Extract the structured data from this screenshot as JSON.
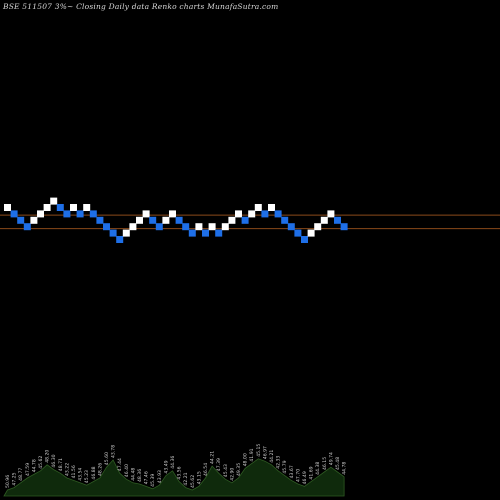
{
  "header": {
    "title": "BSE 511507 3%~  Closing Daily data  Renko  charts MunafaSutra.com"
  },
  "colors": {
    "background": "#000000",
    "brick_up": "#ffffff",
    "brick_down": "#1e6fe8",
    "reference_line": "#8a4a1a",
    "volume_fill": "#0f2a0c",
    "volume_stroke": "#2e5a22",
    "label_text": "#d0d0d0"
  },
  "chart_data": {
    "type": "renko",
    "brick_direction": [
      "up",
      "down",
      "down",
      "down",
      "up",
      "up",
      "up",
      "up",
      "down",
      "down",
      "up",
      "down",
      "up",
      "down",
      "down",
      "down",
      "down",
      "down",
      "up",
      "up",
      "up",
      "up",
      "down",
      "down",
      "up",
      "up",
      "down",
      "down",
      "down",
      "up",
      "down",
      "up",
      "down",
      "up",
      "up",
      "up",
      "down",
      "up",
      "up",
      "down",
      "up",
      "down",
      "down",
      "down",
      "down",
      "down",
      "up",
      "up",
      "up",
      "up",
      "down",
      "down"
    ],
    "brick_level": [
      0,
      -1,
      -2,
      -3,
      -2,
      -1,
      0,
      1,
      0,
      -1,
      0,
      -1,
      0,
      -1,
      -2,
      -3,
      -4,
      -5,
      -4,
      -3,
      -2,
      -1,
      -2,
      -3,
      -2,
      -1,
      -2,
      -3,
      -4,
      -3,
      -4,
      -3,
      -4,
      -3,
      -2,
      -1,
      -2,
      -1,
      0,
      -1,
      0,
      -1,
      -2,
      -3,
      -4,
      -5,
      -4,
      -3,
      -2,
      -1,
      -2,
      -3
    ],
    "reference_lines": [
      {
        "level": -1.2
      },
      {
        "level": -3.3
      }
    ],
    "price_labels": [
      "50.96",
      "47.25",
      "48.77",
      "47.59",
      "44.78",
      "45.62",
      "48.20",
      "46.30",
      "48.71",
      "43.22",
      "41.56",
      "43.54",
      "45.23",
      "46.88",
      "48.26",
      "45.60",
      "43.78",
      "47.44",
      "46.40",
      "44.48",
      "48.36",
      "47.46",
      "45.39",
      "43.93",
      "43.49",
      "44.36",
      "43.56",
      "42.21",
      "45.62",
      "43.15",
      "46.54",
      "44.21",
      "47.39",
      "45.43",
      "42.90",
      "49.35",
      "48.00",
      "41.91",
      "45.15",
      "46.97",
      "44.21",
      "42.33",
      "45.79",
      "43.67",
      "47.70",
      "46.49",
      "41.69",
      "44.38",
      "46.15",
      "49.74",
      "45.48",
      "44.78"
    ],
    "volume": [
      0.1,
      0.14,
      0.22,
      0.3,
      0.36,
      0.42,
      0.52,
      0.44,
      0.38,
      0.3,
      0.26,
      0.22,
      0.18,
      0.24,
      0.3,
      0.48,
      0.6,
      0.38,
      0.28,
      0.22,
      0.2,
      0.16,
      0.12,
      0.18,
      0.34,
      0.42,
      0.24,
      0.14,
      0.1,
      0.16,
      0.3,
      0.5,
      0.38,
      0.28,
      0.22,
      0.3,
      0.46,
      0.54,
      0.62,
      0.58,
      0.52,
      0.42,
      0.34,
      0.26,
      0.2,
      0.16,
      0.24,
      0.32,
      0.4,
      0.48,
      0.4,
      0.32
    ]
  }
}
